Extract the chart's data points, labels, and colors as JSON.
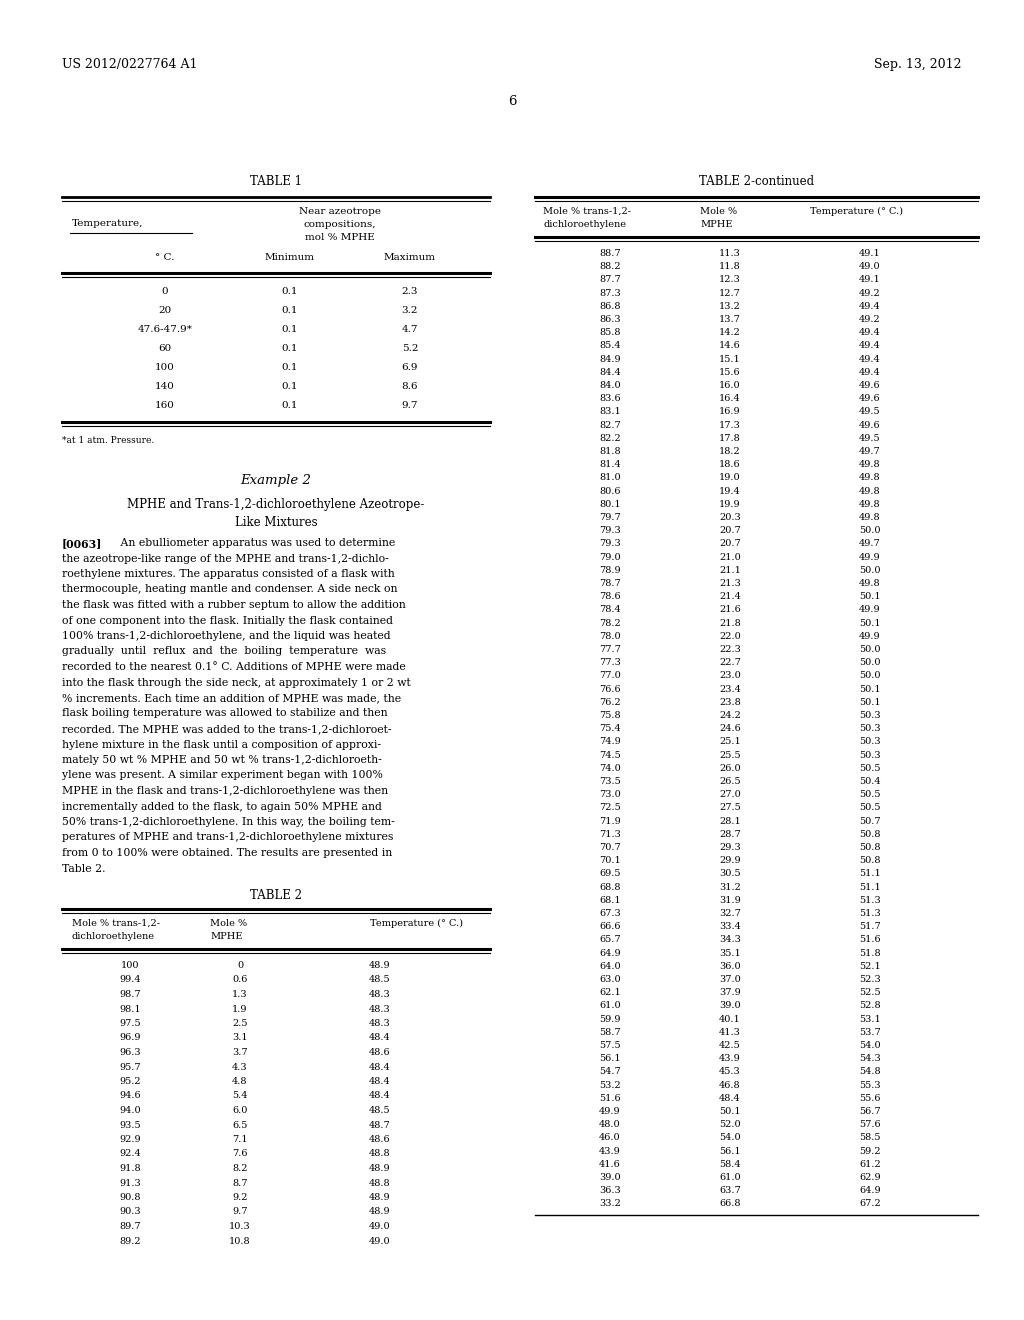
{
  "header_left": "US 2012/0227764 A1",
  "header_right": "Sep. 13, 2012",
  "page_number": "6",
  "table1_title": "TABLE 1",
  "table1_footnote": "*at 1 atm. Pressure.",
  "table1_data": [
    [
      "0",
      "0.1",
      "2.3"
    ],
    [
      "20",
      "0.1",
      "3.2"
    ],
    [
      "47.6-47.9*",
      "0.1",
      "4.7"
    ],
    [
      "60",
      "0.1",
      "5.2"
    ],
    [
      "100",
      "0.1",
      "6.9"
    ],
    [
      "140",
      "0.1",
      "8.6"
    ],
    [
      "160",
      "0.1",
      "9.7"
    ]
  ],
  "example2_title": "Example 2",
  "example2_subtitle_line1": "MPHE and Trans-1,2-dichloroethylene Azeotrope-",
  "example2_subtitle_line2": "Like Mixtures",
  "example2_text_lines": [
    "[0063]    An ebulliometer apparatus was used to determine",
    "the azeotrope-like range of the MPHE and trans-1,2-dichlo-",
    "roethylene mixtures. The apparatus consisted of a flask with",
    "thermocouple, heating mantle and condenser. A side neck on",
    "the flask was fitted with a rubber septum to allow the addition",
    "of one component into the flask. Initially the flask contained",
    "100% trans-1,2-dichloroethylene, and the liquid was heated",
    "gradually  until  reflux  and  the  boiling  temperature  was",
    "recorded to the nearest 0.1° C. Additions of MPHE were made",
    "into the flask through the side neck, at approximately 1 or 2 wt",
    "% increments. Each time an addition of MPHE was made, the",
    "flask boiling temperature was allowed to stabilize and then",
    "recorded. The MPHE was added to the trans-1,2-dichloroet-",
    "hylene mixture in the flask until a composition of approxi-",
    "mately 50 wt % MPHE and 50 wt % trans-1,2-dichloroeth-",
    "ylene was present. A similar experiment began with 100%",
    "MPHE in the flask and trans-1,2-dichloroethylene was then",
    "incrementally added to the flask, to again 50% MPHE and",
    "50% trans-1,2-dichloroethylene. In this way, the boiling tem-",
    "peratures of MPHE and trans-1,2-dichloroethylene mixtures",
    "from 0 to 100% were obtained. The results are presented in",
    "Table 2."
  ],
  "table2_title": "TABLE 2",
  "table2_data": [
    [
      "100",
      "0",
      "48.9"
    ],
    [
      "99.4",
      "0.6",
      "48.5"
    ],
    [
      "98.7",
      "1.3",
      "48.3"
    ],
    [
      "98.1",
      "1.9",
      "48.3"
    ],
    [
      "97.5",
      "2.5",
      "48.3"
    ],
    [
      "96.9",
      "3.1",
      "48.4"
    ],
    [
      "96.3",
      "3.7",
      "48.6"
    ],
    [
      "95.7",
      "4.3",
      "48.4"
    ],
    [
      "95.2",
      "4.8",
      "48.4"
    ],
    [
      "94.6",
      "5.4",
      "48.4"
    ],
    [
      "94.0",
      "6.0",
      "48.5"
    ],
    [
      "93.5",
      "6.5",
      "48.7"
    ],
    [
      "92.9",
      "7.1",
      "48.6"
    ],
    [
      "92.4",
      "7.6",
      "48.8"
    ],
    [
      "91.8",
      "8.2",
      "48.9"
    ],
    [
      "91.3",
      "8.7",
      "48.8"
    ],
    [
      "90.8",
      "9.2",
      "48.9"
    ],
    [
      "90.3",
      "9.7",
      "48.9"
    ],
    [
      "89.7",
      "10.3",
      "49.0"
    ],
    [
      "89.2",
      "10.8",
      "49.0"
    ]
  ],
  "table2cont_title": "TABLE 2-continued",
  "table2cont_data": [
    [
      "88.7",
      "11.3",
      "49.1"
    ],
    [
      "88.2",
      "11.8",
      "49.0"
    ],
    [
      "87.7",
      "12.3",
      "49.1"
    ],
    [
      "87.3",
      "12.7",
      "49.2"
    ],
    [
      "86.8",
      "13.2",
      "49.4"
    ],
    [
      "86.3",
      "13.7",
      "49.2"
    ],
    [
      "85.8",
      "14.2",
      "49.4"
    ],
    [
      "85.4",
      "14.6",
      "49.4"
    ],
    [
      "84.9",
      "15.1",
      "49.4"
    ],
    [
      "84.4",
      "15.6",
      "49.4"
    ],
    [
      "84.0",
      "16.0",
      "49.6"
    ],
    [
      "83.6",
      "16.4",
      "49.6"
    ],
    [
      "83.1",
      "16.9",
      "49.5"
    ],
    [
      "82.7",
      "17.3",
      "49.6"
    ],
    [
      "82.2",
      "17.8",
      "49.5"
    ],
    [
      "81.8",
      "18.2",
      "49.7"
    ],
    [
      "81.4",
      "18.6",
      "49.8"
    ],
    [
      "81.0",
      "19.0",
      "49.8"
    ],
    [
      "80.6",
      "19.4",
      "49.8"
    ],
    [
      "80.1",
      "19.9",
      "49.8"
    ],
    [
      "79.7",
      "20.3",
      "49.8"
    ],
    [
      "79.3",
      "20.7",
      "50.0"
    ],
    [
      "79.3",
      "20.7",
      "49.7"
    ],
    [
      "79.0",
      "21.0",
      "49.9"
    ],
    [
      "78.9",
      "21.1",
      "50.0"
    ],
    [
      "78.7",
      "21.3",
      "49.8"
    ],
    [
      "78.6",
      "21.4",
      "50.1"
    ],
    [
      "78.4",
      "21.6",
      "49.9"
    ],
    [
      "78.2",
      "21.8",
      "50.1"
    ],
    [
      "78.0",
      "22.0",
      "49.9"
    ],
    [
      "77.7",
      "22.3",
      "50.0"
    ],
    [
      "77.3",
      "22.7",
      "50.0"
    ],
    [
      "77.0",
      "23.0",
      "50.0"
    ],
    [
      "76.6",
      "23.4",
      "50.1"
    ],
    [
      "76.2",
      "23.8",
      "50.1"
    ],
    [
      "75.8",
      "24.2",
      "50.3"
    ],
    [
      "75.4",
      "24.6",
      "50.3"
    ],
    [
      "74.9",
      "25.1",
      "50.3"
    ],
    [
      "74.5",
      "25.5",
      "50.3"
    ],
    [
      "74.0",
      "26.0",
      "50.5"
    ],
    [
      "73.5",
      "26.5",
      "50.4"
    ],
    [
      "73.0",
      "27.0",
      "50.5"
    ],
    [
      "72.5",
      "27.5",
      "50.5"
    ],
    [
      "71.9",
      "28.1",
      "50.7"
    ],
    [
      "71.3",
      "28.7",
      "50.8"
    ],
    [
      "70.7",
      "29.3",
      "50.8"
    ],
    [
      "70.1",
      "29.9",
      "50.8"
    ],
    [
      "69.5",
      "30.5",
      "51.1"
    ],
    [
      "68.8",
      "31.2",
      "51.1"
    ],
    [
      "68.1",
      "31.9",
      "51.3"
    ],
    [
      "67.3",
      "32.7",
      "51.3"
    ],
    [
      "66.6",
      "33.4",
      "51.7"
    ],
    [
      "65.7",
      "34.3",
      "51.6"
    ],
    [
      "64.9",
      "35.1",
      "51.8"
    ],
    [
      "64.0",
      "36.0",
      "52.1"
    ],
    [
      "63.0",
      "37.0",
      "52.3"
    ],
    [
      "62.1",
      "37.9",
      "52.5"
    ],
    [
      "61.0",
      "39.0",
      "52.8"
    ],
    [
      "59.9",
      "40.1",
      "53.1"
    ],
    [
      "58.7",
      "41.3",
      "53.7"
    ],
    [
      "57.5",
      "42.5",
      "54.0"
    ],
    [
      "56.1",
      "43.9",
      "54.3"
    ],
    [
      "54.7",
      "45.3",
      "54.8"
    ],
    [
      "53.2",
      "46.8",
      "55.3"
    ],
    [
      "51.6",
      "48.4",
      "55.6"
    ],
    [
      "49.9",
      "50.1",
      "56.7"
    ],
    [
      "48.0",
      "52.0",
      "57.6"
    ],
    [
      "46.0",
      "54.0",
      "58.5"
    ],
    [
      "43.9",
      "56.1",
      "59.2"
    ],
    [
      "41.6",
      "58.4",
      "61.2"
    ],
    [
      "39.0",
      "61.0",
      "62.9"
    ],
    [
      "36.3",
      "63.7",
      "64.9"
    ],
    [
      "33.2",
      "66.8",
      "67.2"
    ]
  ]
}
